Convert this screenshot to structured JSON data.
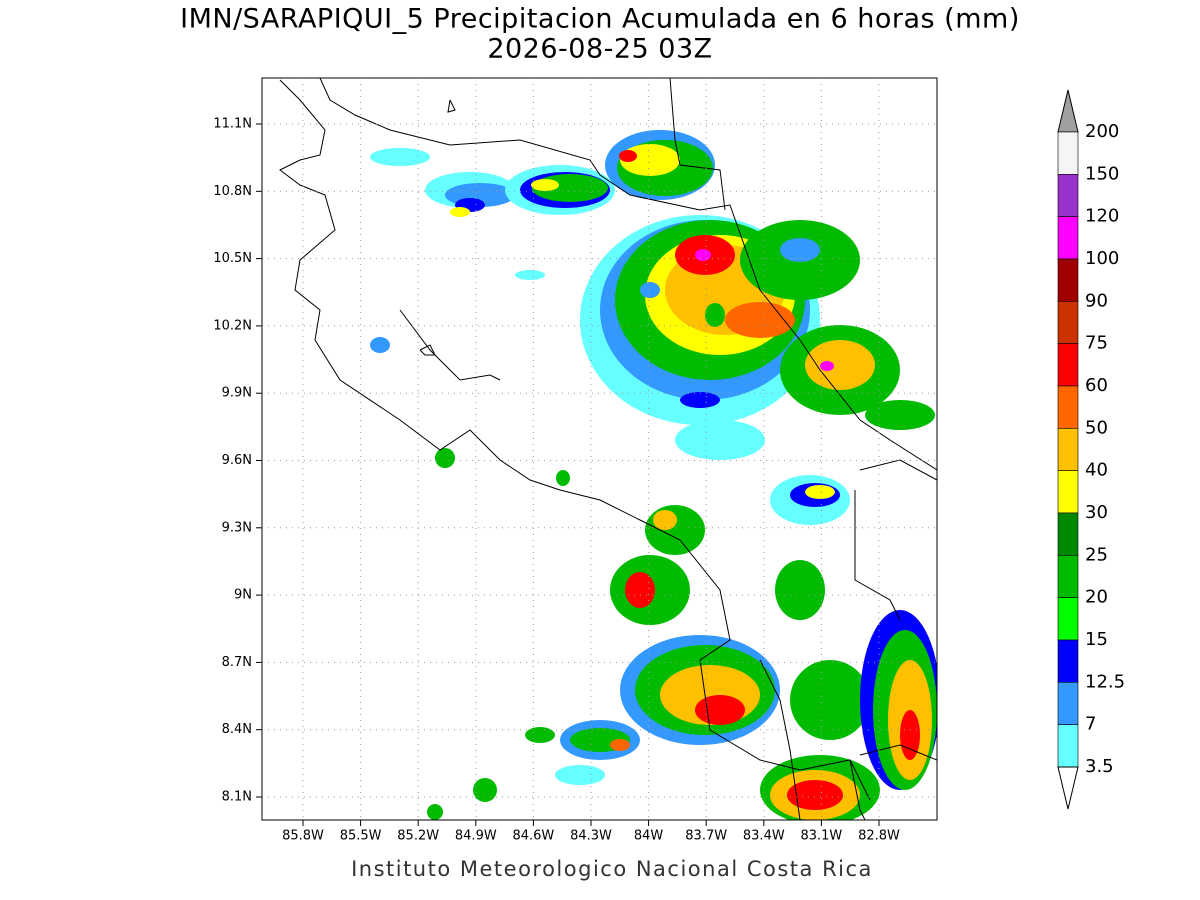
{
  "header": {
    "title": "IMN/SARAPIQUI_5 Precipitacion Acumulada en 6 horas (mm)",
    "subtitle": "2026-08-25 03Z"
  },
  "map": {
    "lat_labels": [
      "11.1N",
      "10.8N",
      "10.5N",
      "10.2N",
      "9.9N",
      "9.6N",
      "9.3N",
      "9N",
      "8.7N",
      "8.4N",
      "8.1N"
    ],
    "lon_labels": [
      "85.8W",
      "85.5W",
      "85.2W",
      "84.9W",
      "84.6W",
      "84.3W",
      "84W",
      "83.7W",
      "83.4W",
      "83.1W",
      "82.8W"
    ]
  },
  "colorbar": {
    "levels": [
      200,
      150,
      120,
      100,
      90,
      75,
      60,
      50,
      40,
      30,
      25,
      20,
      15,
      12.5,
      7,
      3.5
    ],
    "band_colors": [
      "#f5f5f5",
      "#9933cc",
      "#ff00ff",
      "#a00000",
      "#cc3300",
      "#ff0000",
      "#ff6600",
      "#ffc000",
      "#ffff00",
      "#008800",
      "#00bb00",
      "#00ff00",
      "#0000ff",
      "#3399ff",
      "#66ffff"
    ],
    "over_color": "#a0a0a0",
    "under_color": "#ffffff"
  },
  "footer": {
    "credit": "Instituto Meteorologico Nacional Costa Rica"
  }
}
